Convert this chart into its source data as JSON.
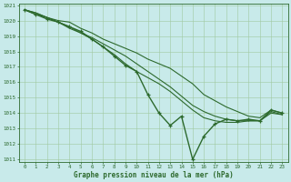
{
  "title": "Graphe pression niveau de la mer (hPa)",
  "x_values": [
    0,
    1,
    2,
    3,
    4,
    5,
    6,
    7,
    8,
    9,
    10,
    11,
    12,
    13,
    14,
    15,
    16,
    17,
    18,
    19,
    20,
    21,
    22,
    23
  ],
  "series": [
    {
      "y": [
        1020.7,
        1020.5,
        1020.2,
        1020.0,
        1019.9,
        1019.5,
        1019.2,
        1018.8,
        1018.5,
        1018.2,
        1017.9,
        1017.5,
        1017.2,
        1016.9,
        1016.4,
        1015.9,
        1015.2,
        1014.8,
        1014.4,
        1014.1,
        1013.8,
        1013.7,
        1014.2,
        1014.0
      ],
      "marker": false,
      "lw": 0.8
    },
    {
      "y": [
        1020.7,
        1020.5,
        1020.2,
        1019.9,
        1019.5,
        1019.2,
        1018.9,
        1018.5,
        1018.1,
        1017.7,
        1017.2,
        1016.7,
        1016.2,
        1015.7,
        1015.1,
        1014.5,
        1014.1,
        1013.8,
        1013.6,
        1013.5,
        1013.5,
        1013.5,
        1014.1,
        1013.9
      ],
      "marker": false,
      "lw": 0.8
    },
    {
      "y": [
        1020.7,
        1020.4,
        1020.2,
        1019.9,
        1019.6,
        1019.2,
        1018.8,
        1018.3,
        1017.8,
        1017.2,
        1016.7,
        1016.3,
        1015.9,
        1015.4,
        1014.8,
        1014.2,
        1013.7,
        1013.5,
        1013.4,
        1013.4,
        1013.5,
        1013.5,
        1014.0,
        1013.9
      ],
      "marker": false,
      "lw": 0.8
    },
    {
      "y": [
        1020.7,
        1020.4,
        1020.1,
        1019.9,
        1019.6,
        1019.3,
        1018.8,
        1018.3,
        1017.7,
        1017.1,
        1016.7,
        1015.2,
        1014.0,
        1013.2,
        1013.8,
        1011.0,
        1012.5,
        1013.3,
        1013.6,
        1013.5,
        1013.6,
        1013.5,
        1014.2,
        1014.0
      ],
      "marker": true,
      "lw": 1.0
    }
  ],
  "line_color": "#2d6a2d",
  "bg_color": "#c8eaea",
  "grid_color": "#a0c8a0",
  "text_color": "#2d6a2d",
  "ylim": [
    1011,
    1021
  ],
  "xlim": [
    -0.5,
    23.5
  ],
  "yticks": [
    1011,
    1012,
    1013,
    1014,
    1015,
    1016,
    1017,
    1018,
    1019,
    1020,
    1021
  ],
  "xticks": [
    0,
    1,
    2,
    3,
    4,
    5,
    6,
    7,
    8,
    9,
    10,
    11,
    12,
    13,
    14,
    15,
    16,
    17,
    18,
    19,
    20,
    21,
    22,
    23
  ]
}
